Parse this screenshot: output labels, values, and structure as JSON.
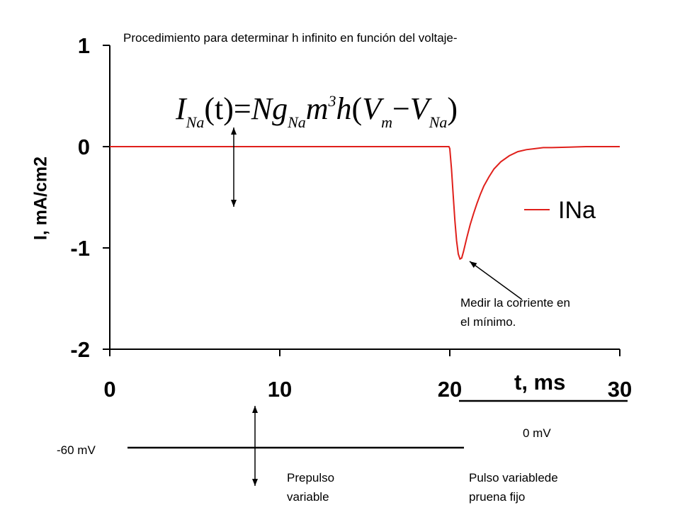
{
  "title": "Procedimiento para determinar h infinito en función del voltaje-",
  "formula": {
    "lhs_I": "I",
    "lhs_sub": "Na",
    "lhs_arg": "(t)",
    "eq": "=",
    "N": "N",
    "g": "g",
    "g_sub": "Na",
    "m": "m",
    "m_sup": "3",
    "h": "h",
    "open": "(",
    "V1": "V",
    "V1_sub": "m",
    "minus": "−",
    "V2": "V",
    "V2_sub": "Na",
    "close": ")"
  },
  "colors": {
    "trace": "#e0201b",
    "axis": "#000000",
    "background": "#ffffff"
  },
  "chart_data": {
    "type": "line",
    "title": "",
    "xlabel": "t, ms",
    "ylabel": "I, mA/cm2",
    "xlim": [
      0,
      30
    ],
    "ylim": [
      -2,
      1
    ],
    "x_ticks": [
      0,
      10,
      20,
      30
    ],
    "y_ticks": [
      1,
      0,
      -1,
      -2
    ],
    "x_tick_labels": [
      "0",
      "10",
      "20",
      "30"
    ],
    "y_tick_labels": [
      "1",
      "0",
      "-1",
      "-2"
    ],
    "grid": false,
    "legend_position": "right",
    "series": [
      {
        "name": "INa",
        "color": "#e0201b",
        "x": [
          0,
          19.95,
          20.0,
          20.1,
          20.2,
          20.3,
          20.4,
          20.5,
          20.6,
          20.7,
          20.8,
          20.9,
          21.0,
          21.2,
          21.4,
          21.6,
          21.8,
          22.0,
          22.3,
          22.6,
          23.0,
          23.5,
          24.0,
          24.5,
          25.0,
          25.5,
          26.0,
          27.0,
          28.0,
          29.0,
          30.0
        ],
        "y": [
          0,
          0,
          -0.02,
          -0.22,
          -0.48,
          -0.73,
          -0.93,
          -1.06,
          -1.11,
          -1.1,
          -1.04,
          -0.97,
          -0.9,
          -0.77,
          -0.66,
          -0.56,
          -0.47,
          -0.39,
          -0.3,
          -0.22,
          -0.15,
          -0.09,
          -0.05,
          -0.03,
          -0.02,
          -0.01,
          -0.01,
          -0.005,
          0,
          0,
          0
        ]
      }
    ]
  },
  "annotations": {
    "minimum_note": [
      "Medir la corriente en",
      "el mínimo."
    ],
    "prepulse_note": [
      "Prepulso",
      "variable"
    ],
    "pulse_note": [
      "Pulso variablede",
      "pruena fijo"
    ],
    "holding_voltage": "-60 mV",
    "test_voltage": "0 mV"
  }
}
